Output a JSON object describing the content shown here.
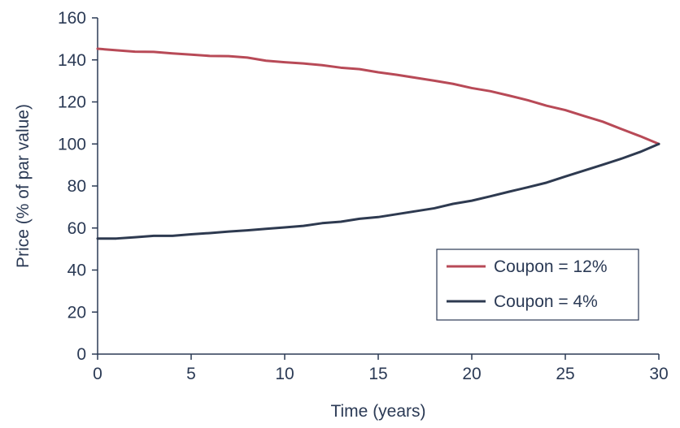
{
  "chart_data": {
    "type": "line",
    "title": "",
    "xlabel": "Time (years)",
    "ylabel": "Price (% of par value)",
    "xlim": [
      0,
      30
    ],
    "ylim": [
      0,
      160
    ],
    "xticks": [
      0,
      5,
      10,
      15,
      20,
      25,
      30
    ],
    "yticks": [
      0,
      20,
      40,
      60,
      80,
      100,
      120,
      140,
      160
    ],
    "grid": false,
    "legend_position": "bottom-right",
    "x": [
      0,
      1,
      2,
      3,
      4,
      5,
      6,
      7,
      8,
      9,
      10,
      11,
      12,
      13,
      14,
      15,
      16,
      17,
      18,
      19,
      20,
      21,
      22,
      23,
      24,
      25,
      26,
      27,
      28,
      29,
      30
    ],
    "series": [
      {
        "name": "Coupon = 12%",
        "color": "#b84a57",
        "values": [
          145.3,
          144.6,
          143.9,
          143.8,
          143.1,
          142.5,
          141.9,
          141.8,
          141.1,
          139.6,
          138.9,
          138.3,
          137.5,
          136.3,
          135.6,
          134.1,
          132.9,
          131.5,
          130.1,
          128.6,
          126.6,
          125.1,
          123.0,
          120.8,
          118.2,
          116.1,
          113.3,
          110.6,
          107.1,
          103.7,
          100.0
        ]
      },
      {
        "name": "Coupon = 4%",
        "color": "#2e3a50",
        "values": [
          55.0,
          55.0,
          55.6,
          56.3,
          56.3,
          57.0,
          57.6,
          58.3,
          58.9,
          59.6,
          60.3,
          61.0,
          62.3,
          63.0,
          64.4,
          65.2,
          66.6,
          68.0,
          69.4,
          71.5,
          73.0,
          75.1,
          77.3,
          79.4,
          81.6,
          84.5,
          87.3,
          90.1,
          93.0,
          96.2,
          100.0
        ]
      }
    ]
  }
}
